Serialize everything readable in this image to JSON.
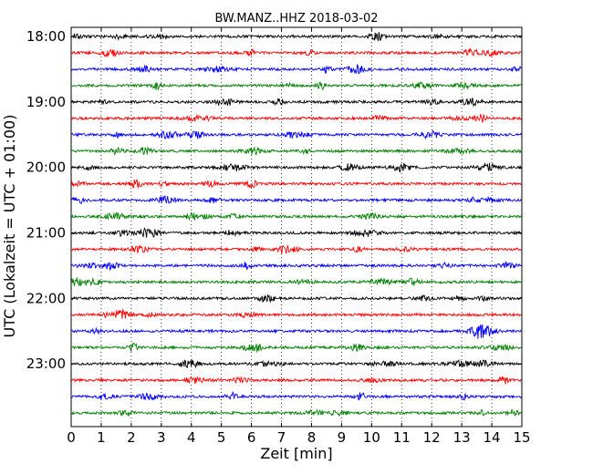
{
  "chart_data": {
    "type": "line",
    "subtype": "dayplot",
    "title": "BW.MANZ..HHZ 2018-03-02",
    "xlabel": "Zeit  [min]",
    "ylabel": "UTC (Lokalzeit = UTC + 01:00)",
    "xlim": [
      0,
      15
    ],
    "x_ticks": [
      "0",
      "1",
      "2",
      "3",
      "4",
      "5",
      "6",
      "7",
      "8",
      "9",
      "10",
      "11",
      "12",
      "13",
      "14",
      "15"
    ],
    "y_tick_labels": [
      "18:00",
      "19:00",
      "20:00",
      "21:00",
      "22:00",
      "23:00"
    ],
    "grid": "vertical dotted at each minute",
    "line_start_times": [
      "18:00",
      "18:15",
      "18:30",
      "18:45",
      "19:00",
      "19:15",
      "19:30",
      "19:45",
      "20:00",
      "20:15",
      "20:30",
      "20:45",
      "21:00",
      "21:15",
      "21:30",
      "21:45",
      "22:00",
      "22:15",
      "22:30",
      "22:45",
      "23:00",
      "23:15",
      "23:30",
      "23:45"
    ],
    "color_cycle": [
      "#000000",
      "#ff0000",
      "#0000ff",
      "#008000"
    ]
  }
}
